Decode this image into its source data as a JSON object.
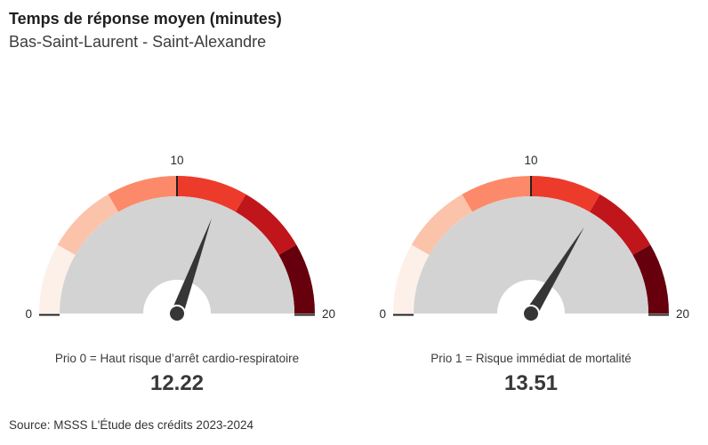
{
  "header": {
    "title": "Temps de réponse moyen (minutes)",
    "subtitle": "Bas-Saint-Laurent - Saint-Alexandre"
  },
  "footer": {
    "source": "Source: MSSS L'Étude des crédits 2023-2024"
  },
  "style": {
    "face_color": "#d3d3d3",
    "needle_color": "#363636",
    "hub_ring_color": "#ffffff",
    "tick_color": "#222222",
    "label_color": "#2b2b2b",
    "band_colors": [
      "#fdf0e9",
      "#fcc3ab",
      "#fc8a6a",
      "#ed3b2b",
      "#c0161b",
      "#67000d"
    ]
  },
  "chart_data": [
    {
      "type": "gauge",
      "caption": "Prio 0 = Haut risque d’arrêt cardio-respiratoire",
      "value": 12.22,
      "value_label": "12.22",
      "min": 0,
      "max": 20,
      "ticks": [
        {
          "value": 0,
          "label": "0"
        },
        {
          "value": 10,
          "label": "10"
        },
        {
          "value": 20,
          "label": "20"
        }
      ],
      "segments": [
        {
          "from": 0,
          "to": 3.33,
          "color": "#fdf0e9"
        },
        {
          "from": 3.33,
          "to": 6.67,
          "color": "#fcc3ab"
        },
        {
          "from": 6.67,
          "to": 10,
          "color": "#fc8a6a"
        },
        {
          "from": 10,
          "to": 13.33,
          "color": "#ed3b2b"
        },
        {
          "from": 13.33,
          "to": 16.67,
          "color": "#c0161b"
        },
        {
          "from": 16.67,
          "to": 20,
          "color": "#67000d"
        }
      ]
    },
    {
      "type": "gauge",
      "caption": "Prio 1 = Risque immédiat de mortalité",
      "value": 13.51,
      "value_label": "13.51",
      "min": 0,
      "max": 20,
      "ticks": [
        {
          "value": 0,
          "label": "0"
        },
        {
          "value": 10,
          "label": "10"
        },
        {
          "value": 20,
          "label": "20"
        }
      ],
      "segments": [
        {
          "from": 0,
          "to": 3.33,
          "color": "#fdf0e9"
        },
        {
          "from": 3.33,
          "to": 6.67,
          "color": "#fcc3ab"
        },
        {
          "from": 6.67,
          "to": 10,
          "color": "#fc8a6a"
        },
        {
          "from": 10,
          "to": 13.33,
          "color": "#ed3b2b"
        },
        {
          "from": 13.33,
          "to": 16.67,
          "color": "#c0161b"
        },
        {
          "from": 16.67,
          "to": 20,
          "color": "#67000d"
        }
      ]
    }
  ]
}
